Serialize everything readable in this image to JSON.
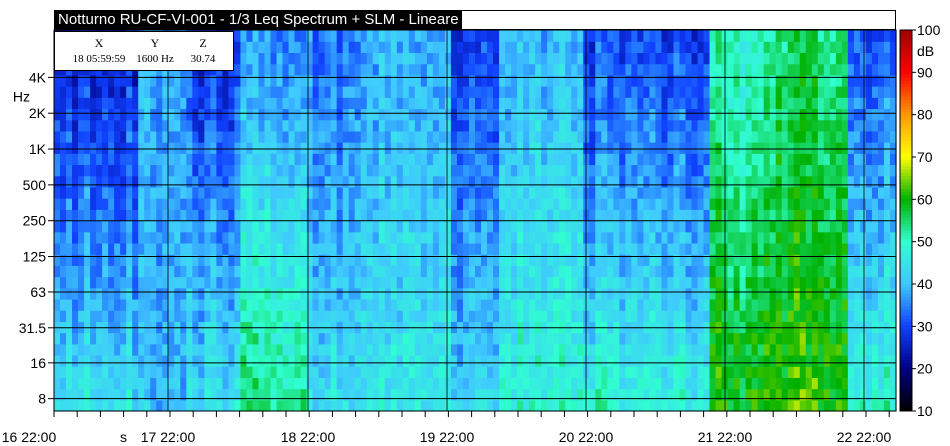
{
  "chart_data": {
    "type": "heatmap",
    "title": "Notturno RU-CF-VI-001 - 1/3 Leq Spectrum + SLM - Lineare",
    "y_axis": {
      "unit": "Hz",
      "scale": "log",
      "tick_labels": [
        "8",
        "16",
        "31.5",
        "63",
        "125",
        "250",
        "500",
        "1K",
        "2K",
        "4K"
      ],
      "tick_values": [
        8,
        16,
        31.5,
        63,
        125,
        250,
        500,
        1000,
        2000,
        4000
      ]
    },
    "x_axis": {
      "unit": "s",
      "tick_labels": [
        "16 22:00",
        "17 22:00",
        "18 22:00",
        "19 22:00",
        "20 22:00",
        "21 22:00",
        "22 22:00"
      ]
    },
    "colorbar": {
      "unit": "dB",
      "min": 10,
      "max": 100,
      "tick_labels": [
        "10",
        "20",
        "30",
        "40",
        "50",
        "60",
        "70",
        "80",
        "90",
        "100"
      ],
      "stops": [
        {
          "value": 10,
          "color": "#000000"
        },
        {
          "value": 20,
          "color": "#000080"
        },
        {
          "value": 30,
          "color": "#1040ff"
        },
        {
          "value": 40,
          "color": "#40c8ff"
        },
        {
          "value": 50,
          "color": "#30ffd0"
        },
        {
          "value": 60,
          "color": "#00b000"
        },
        {
          "value": 70,
          "color": "#ffff00"
        },
        {
          "value": 80,
          "color": "#ff9900"
        },
        {
          "value": 90,
          "color": "#ff0000"
        },
        {
          "value": 100,
          "color": "#a00000"
        }
      ]
    },
    "cursor": {
      "x_header": "X",
      "x_value": "18 05:59:59",
      "y_header": "Y",
      "y_value": "1600 Hz",
      "z_header": "Z",
      "z_value": "30.74"
    },
    "bands": [
      {
        "x_range": [
          0,
          0.1
        ],
        "low_db": 45,
        "high_db": 26
      },
      {
        "x_range": [
          0.1,
          0.16
        ],
        "low_db": 40,
        "high_db": 38
      },
      {
        "x_range": [
          0.16,
          0.22
        ],
        "low_db": 45,
        "high_db": 28
      },
      {
        "x_range": [
          0.22,
          0.3
        ],
        "low_db": 55,
        "high_db": 36
      },
      {
        "x_range": [
          0.3,
          0.37
        ],
        "low_db": 44,
        "high_db": 35
      },
      {
        "x_range": [
          0.37,
          0.47
        ],
        "low_db": 46,
        "high_db": 38
      },
      {
        "x_range": [
          0.47,
          0.53
        ],
        "low_db": 44,
        "high_db": 30
      },
      {
        "x_range": [
          0.53,
          0.63
        ],
        "low_db": 50,
        "high_db": 40
      },
      {
        "x_range": [
          0.63,
          0.78
        ],
        "low_db": 48,
        "high_db": 30
      },
      {
        "x_range": [
          0.78,
          0.86
        ],
        "low_db": 60,
        "high_db": 50
      },
      {
        "x_range": [
          0.86,
          0.94
        ],
        "low_db": 62,
        "high_db": 55
      },
      {
        "x_range": [
          0.94,
          1.0
        ],
        "low_db": 50,
        "high_db": 32
      }
    ]
  }
}
